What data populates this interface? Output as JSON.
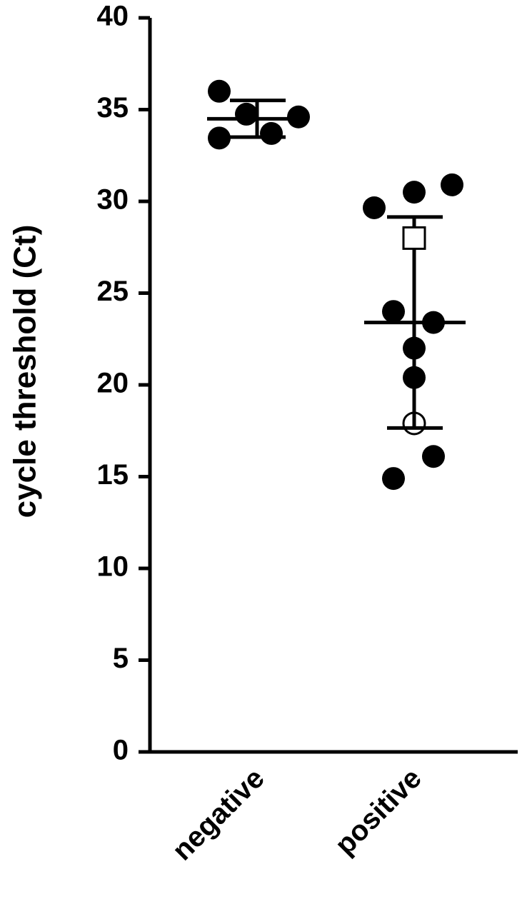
{
  "chart_data": {
    "type": "dot",
    "ylabel": "cycle threshold (Ct)",
    "categories": [
      "negative",
      "positive"
    ],
    "color": "#000000",
    "ylim": [
      0,
      40
    ],
    "yticks": [
      0,
      5,
      10,
      15,
      20,
      25,
      30,
      35,
      40
    ],
    "groups": [
      {
        "values": [
          36.0,
          34.75,
          34.6,
          33.45,
          33.7
        ],
        "markers": [
          "circle",
          "circle",
          "circle",
          "circle",
          "circle"
        ],
        "mean": 34.5,
        "sd": 1.0
      },
      {
        "values": [
          30.9,
          30.5,
          29.65,
          28.0,
          24.0,
          23.4,
          22.0,
          20.4,
          17.9,
          16.1,
          14.9
        ],
        "markers": [
          "circle",
          "circle",
          "circle",
          "open-square",
          "circle",
          "circle",
          "circle",
          "circle",
          "open-circle",
          "circle",
          "circle"
        ],
        "mean": 23.4,
        "sd": 5.75
      }
    ]
  }
}
